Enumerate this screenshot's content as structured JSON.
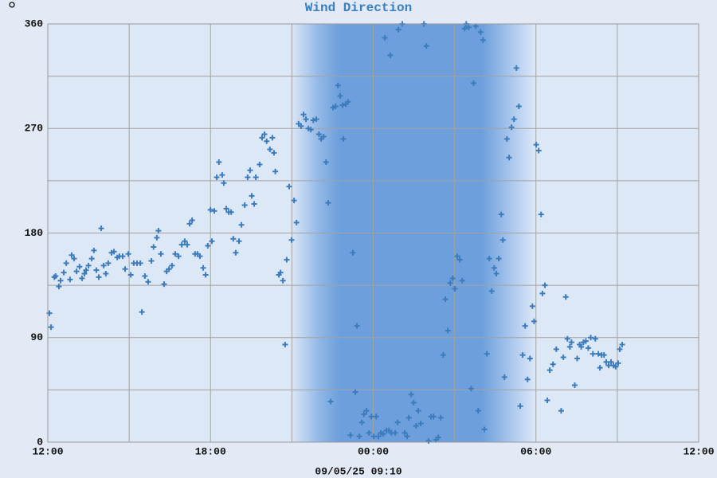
{
  "chart_data": {
    "type": "scatter",
    "title": "Wind Direction",
    "footer": "09/05/25 09:10",
    "x": [
      0.06,
      0.12,
      0.24,
      0.29,
      0.41,
      0.47,
      0.59,
      0.68,
      0.82,
      0.88,
      0.97,
      1.06,
      1.17,
      1.26,
      1.35,
      1.41,
      1.5,
      1.62,
      1.7,
      1.79,
      1.88,
      1.97,
      2.06,
      2.14,
      2.23,
      2.35,
      2.44,
      2.56,
      2.64,
      2.76,
      2.85,
      2.97,
      3.06,
      3.17,
      3.29,
      3.41,
      3.47,
      3.58,
      3.7,
      3.82,
      3.9,
      4.02,
      4.08,
      4.17,
      4.29,
      4.38,
      4.47,
      4.58,
      4.7,
      4.82,
      4.94,
      5.05,
      5.14,
      5.23,
      5.32,
      5.43,
      5.52,
      5.61,
      5.73,
      5.82,
      5.9,
      6.0,
      6.05,
      6.14,
      6.23,
      6.31,
      6.43,
      6.49,
      6.58,
      6.67,
      6.76,
      6.84,
      6.93,
      7.05,
      7.14,
      7.26,
      7.37,
      7.46,
      7.52,
      7.61,
      7.67,
      7.81,
      7.9,
      7.99,
      8.07,
      8.19,
      8.28,
      8.34,
      8.39,
      8.52,
      8.58,
      8.67,
      8.75,
      8.81,
      8.9,
      8.99,
      9.08,
      9.17,
      9.25,
      9.34,
      9.43,
      9.52,
      9.61,
      9.7,
      9.79,
      9.9,
      10.0,
      10.08,
      10.17,
      10.26,
      10.34,
      10.43,
      10.52,
      10.61,
      10.7,
      10.78,
      10.87,
      10.9,
      10.99,
      11.07,
      11.16,
      11.25,
      11.34,
      11.4,
      11.49,
      11.58,
      11.66,
      11.75,
      11.84,
      11.93,
      12.02,
      12.11,
      12.19,
      12.28,
      12.37,
      12.43,
      12.49,
      12.58,
      12.63,
      12.67,
      12.81,
      12.9,
      12.93,
      13.07,
      13.16,
      13.25,
      13.31,
      13.4,
      13.49,
      13.58,
      13.66,
      13.75,
      13.87,
      13.96,
      14.04,
      14.13,
      14.22,
      14.31,
      14.4,
      14.49,
      14.58,
      14.66,
      14.75,
      14.84,
      14.93,
      15.01,
      15.1,
      15.19,
      15.28,
      15.37,
      15.43,
      15.52,
      15.61,
      15.7,
      15.78,
      15.87,
      15.96,
      16.05,
      16.1,
      16.19,
      16.28,
      16.37,
      16.46,
      16.54,
      16.63,
      16.72,
      16.78,
      16.84,
      16.93,
      17.01,
      17.1,
      17.19,
      17.28,
      17.37,
      17.42,
      17.51,
      17.6,
      17.69,
      17.78,
      17.87,
      17.93,
      18.01,
      18.1,
      18.19,
      18.24,
      18.33,
      18.42,
      18.51,
      18.63,
      18.75,
      18.93,
      19.01,
      19.1,
      19.16,
      19.25,
      19.31,
      19.43,
      19.52,
      19.61,
      19.67,
      19.75,
      19.84,
      19.93,
      20.02,
      20.1,
      20.19,
      20.3,
      20.36,
      20.42,
      20.51,
      20.59,
      20.68,
      20.77,
      20.86,
      20.94,
      21.03,
      21.09,
      21.18
    ],
    "values": [
      111,
      99,
      142,
      143,
      134,
      139,
      146,
      154,
      140,
      161,
      158,
      147,
      151,
      141,
      145,
      148,
      152,
      158,
      165,
      148,
      142,
      184,
      152,
      145,
      154,
      163,
      164,
      159,
      160,
      160,
      149,
      162,
      144,
      154,
      154,
      154,
      112,
      143,
      138,
      156,
      168,
      176,
      182,
      162,
      136,
      147,
      149,
      152,
      162,
      160,
      170,
      173,
      170,
      188,
      191,
      162,
      162,
      160,
      150,
      144,
      169,
      200,
      173,
      199,
      228,
      241,
      230,
      223,
      201,
      198,
      198,
      175,
      163,
      173,
      187,
      204,
      228,
      234,
      212,
      205,
      228,
      239,
      262,
      265,
      259,
      252,
      262,
      249,
      233,
      144,
      146,
      139,
      84,
      157,
      220,
      174,
      208,
      189,
      274,
      272,
      282,
      278,
      270,
      269,
      277,
      278,
      265,
      261,
      263,
      241,
      206,
      35,
      288,
      289,
      307,
      298,
      290,
      261,
      291,
      293,
      6,
      163,
      43,
      100,
      5,
      17,
      24,
      27,
      8,
      22,
      5,
      22,
      5,
      8,
      7,
      348,
      10,
      10,
      333,
      8,
      8,
      17,
      355,
      360,
      8,
      5,
      21,
      41,
      34,
      14,
      27,
      16,
      360,
      341,
      1,
      22,
      22,
      2,
      4,
      21,
      75,
      123,
      96,
      137,
      141,
      132,
      160,
      157,
      139,
      356,
      360,
      357,
      46,
      309,
      358,
      27,
      353,
      346,
      11,
      76,
      158,
      130,
      150,
      145,
      158,
      196,
      174,
      56,
      261,
      245,
      271,
      278,
      322,
      289,
      31,
      75,
      100,
      54,
      72,
      117,
      104,
      256,
      251,
      196,
      128,
      135,
      36,
      62,
      67,
      80,
      27,
      73,
      125,
      89,
      82,
      86,
      49,
      72,
      84,
      82,
      86,
      87,
      81,
      90,
      76,
      89,
      76,
      64,
      75,
      75,
      69,
      66,
      69,
      66,
      65,
      68,
      80,
      84
    ],
    "color": "#3d7cbc",
    "xlim": [
      0,
      24
    ],
    "xticks": [
      {
        "value": 0,
        "label": "12:00"
      },
      {
        "value": 6,
        "label": "18:00"
      },
      {
        "value": 12,
        "label": "00:00"
      },
      {
        "value": 18,
        "label": "06:00"
      },
      {
        "value": 24,
        "label": "12:00"
      }
    ],
    "minor_xticks": [
      3,
      9,
      15,
      21
    ],
    "ylim": [
      0,
      360
    ],
    "yticks": [
      0,
      90,
      180,
      270,
      360
    ],
    "minor_yticks": [
      45,
      135,
      225,
      315
    ],
    "grid": true
  }
}
